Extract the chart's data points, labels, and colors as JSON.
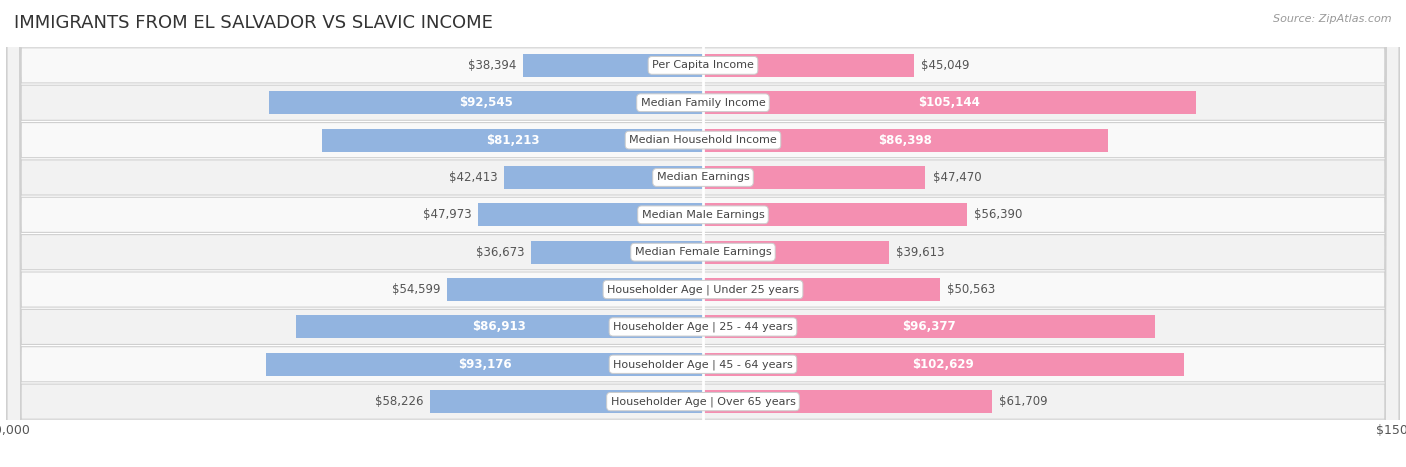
{
  "title": "IMMIGRANTS FROM EL SALVADOR VS SLAVIC INCOME",
  "source": "Source: ZipAtlas.com",
  "categories": [
    "Per Capita Income",
    "Median Family Income",
    "Median Household Income",
    "Median Earnings",
    "Median Male Earnings",
    "Median Female Earnings",
    "Householder Age | Under 25 years",
    "Householder Age | 25 - 44 years",
    "Householder Age | 45 - 64 years",
    "Householder Age | Over 65 years"
  ],
  "el_salvador_values": [
    38394,
    92545,
    81213,
    42413,
    47973,
    36673,
    54599,
    86913,
    93176,
    58226
  ],
  "slavic_values": [
    45049,
    105144,
    86398,
    47470,
    56390,
    39613,
    50563,
    96377,
    102629,
    61709
  ],
  "el_salvador_color": "#92b4e0",
  "slavic_color": "#f48fb1",
  "el_salvador_label": "Immigrants from El Salvador",
  "slavic_label": "Slavic",
  "max_val": 150000,
  "bar_height": 0.62,
  "label_fontsize": 8.5,
  "category_fontsize": 8.0,
  "title_fontsize": 13,
  "axis_label_fontsize": 9,
  "row_colors": [
    "#f9f9f9",
    "#f2f2f2"
  ],
  "el_salvador_threshold": 65000,
  "slavic_threshold": 75000
}
